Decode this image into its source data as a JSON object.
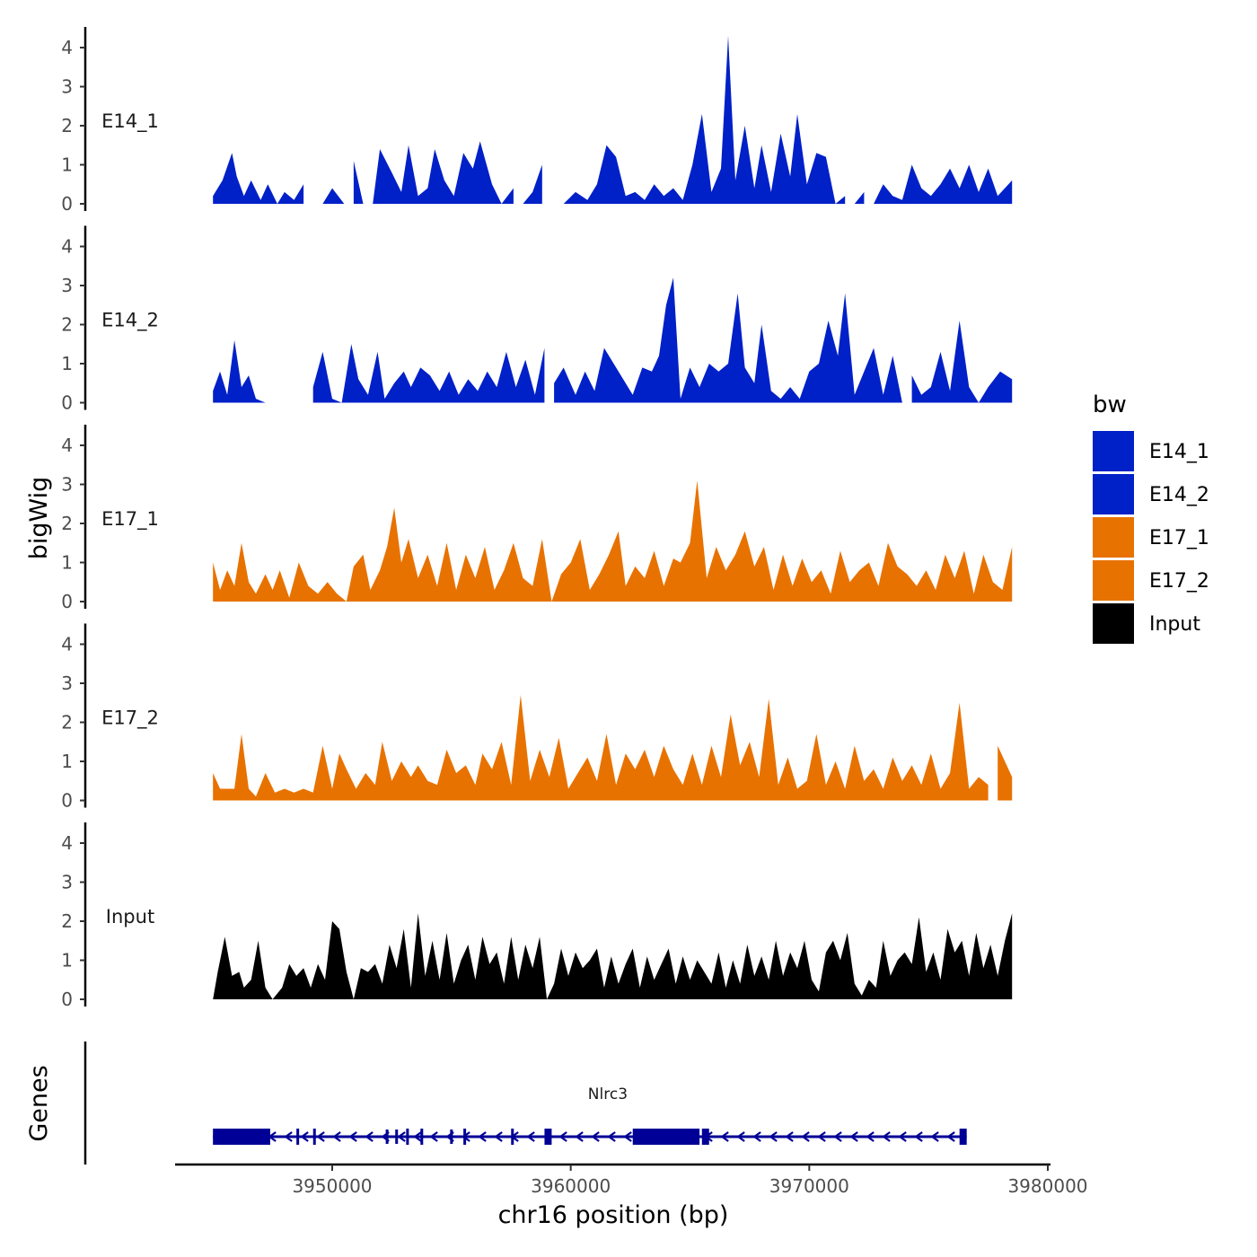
{
  "chart_data": {
    "type": "area",
    "ylabel": "bigWig",
    "xlabel": "chr16 position (bp)",
    "xlim": [
      3944000,
      3980000
    ],
    "ylim": [
      0,
      4.3
    ],
    "y_ticks": [
      0,
      1,
      2,
      3,
      4
    ],
    "x_ticks": [
      3950000,
      3960000,
      3970000,
      3980000
    ],
    "x_tick_labels": [
      "3950000",
      "3960000",
      "3970000",
      "3980000"
    ],
    "series": [
      {
        "name": "E14_1",
        "color": "#0020c8",
        "x": [
          3945000,
          3945400,
          3945800,
          3946000,
          3946300,
          3946600,
          3947000,
          3947300,
          3947700,
          3948000,
          3948400,
          3948800,
          3949100,
          3949600,
          3950000,
          3950500,
          3950900,
          3951300,
          3951700,
          3952000,
          3952500,
          3952900,
          3953200,
          3953600,
          3954000,
          3954300,
          3954700,
          3955100,
          3955500,
          3955900,
          3956200,
          3956700,
          3957100,
          3957600,
          3958000,
          3958400,
          3958800,
          3959200,
          3959700,
          3960200,
          3960700,
          3961100,
          3961500,
          3961900,
          3962300,
          3962700,
          3963100,
          3963500,
          3963900,
          3964300,
          3964700,
          3965100,
          3965500,
          3965900,
          3966300,
          3966600,
          3966900,
          3967300,
          3967700,
          3968000,
          3968400,
          3968800,
          3969200,
          3969500,
          3969900,
          3970300,
          3970700,
          3971100,
          3971500,
          3971900,
          3972300,
          3972700,
          3973100,
          3973500,
          3973900,
          3974300,
          3974700,
          3975100,
          3975500,
          3975900,
          3976300,
          3976700,
          3977100,
          3977500,
          3977900,
          3978500
        ],
        "y": [
          0.2,
          0.6,
          1.3,
          0.7,
          0.2,
          0.6,
          0.1,
          0.5,
          0.0,
          0.3,
          0.1,
          0.5,
          0.0,
          0.0,
          0.4,
          0.0,
          1.1,
          0.0,
          0.0,
          1.4,
          0.8,
          0.3,
          1.5,
          0.2,
          0.4,
          1.4,
          0.6,
          0.2,
          1.3,
          0.9,
          1.6,
          0.5,
          0.0,
          0.4,
          0.0,
          0.3,
          1.0,
          0.0,
          0.0,
          0.3,
          0.1,
          0.5,
          1.5,
          1.2,
          0.2,
          0.3,
          0.1,
          0.5,
          0.2,
          0.4,
          0.1,
          1.0,
          2.3,
          0.3,
          0.9,
          4.3,
          0.6,
          2.0,
          0.4,
          1.5,
          0.3,
          1.8,
          0.7,
          2.3,
          0.5,
          1.3,
          1.2,
          0.0,
          0.2,
          0.0,
          0.3,
          0.0,
          0.5,
          0.2,
          0.1,
          1.0,
          0.4,
          0.2,
          0.5,
          0.9,
          0.4,
          1.0,
          0.3,
          0.9,
          0.2,
          0.6
        ],
        "gaps": [
          [
            3948800,
            3949100
          ],
          [
            3950500,
            3950900
          ],
          [
            3951300,
            3951700
          ],
          [
            3957600,
            3958000
          ],
          [
            3958800,
            3959200
          ],
          [
            3959200,
            3959700
          ],
          [
            3971500,
            3971900
          ],
          [
            3972300,
            3972700
          ]
        ]
      },
      {
        "name": "E14_2",
        "color": "#0020c8",
        "x": [
          3945000,
          3945300,
          3945600,
          3945900,
          3946200,
          3946500,
          3946800,
          3947200,
          3947700,
          3948200,
          3948700,
          3949200,
          3949600,
          3950000,
          3950400,
          3950800,
          3951100,
          3951500,
          3951900,
          3952200,
          3952600,
          3953000,
          3953300,
          3953700,
          3954100,
          3954500,
          3954900,
          3955300,
          3955700,
          3956100,
          3956500,
          3956900,
          3957300,
          3957700,
          3958100,
          3958500,
          3958900,
          3959300,
          3959700,
          3960200,
          3960600,
          3961000,
          3961400,
          3961800,
          3962200,
          3962600,
          3963000,
          3963400,
          3963700,
          3964000,
          3964300,
          3964600,
          3965000,
          3965400,
          3965800,
          3966200,
          3966600,
          3967000,
          3967300,
          3967700,
          3968000,
          3968400,
          3968800,
          3969200,
          3969600,
          3970000,
          3970400,
          3970800,
          3971200,
          3971500,
          3971900,
          3972300,
          3972700,
          3973100,
          3973500,
          3973900,
          3974300,
          3974700,
          3975100,
          3975500,
          3975900,
          3976300,
          3976700,
          3977100,
          3977500,
          3978000,
          3978500
        ],
        "y": [
          0.3,
          0.8,
          0.2,
          1.6,
          0.4,
          0.7,
          0.1,
          0.0,
          0.0,
          0.0,
          0.0,
          0.4,
          1.3,
          0.1,
          0.0,
          1.5,
          0.6,
          0.2,
          1.3,
          0.1,
          0.5,
          0.8,
          0.4,
          0.9,
          0.7,
          0.3,
          0.8,
          0.2,
          0.6,
          0.3,
          0.8,
          0.4,
          1.3,
          0.4,
          1.1,
          0.2,
          1.4,
          0.5,
          0.9,
          0.2,
          0.8,
          0.3,
          1.4,
          1.0,
          0.6,
          0.2,
          0.9,
          0.8,
          1.2,
          2.5,
          3.2,
          0.1,
          0.9,
          0.4,
          1.0,
          0.8,
          1.0,
          2.8,
          0.9,
          0.5,
          2.0,
          0.3,
          0.1,
          0.4,
          0.1,
          0.8,
          1.0,
          2.1,
          1.2,
          2.8,
          0.2,
          0.8,
          1.4,
          0.2,
          1.2,
          0.0,
          0.7,
          0.2,
          0.4,
          1.3,
          0.3,
          2.1,
          0.4,
          0.0,
          0.4,
          0.8,
          0.6
        ],
        "gaps": [
          [
            3947200,
            3949200
          ],
          [
            3958900,
            3959300
          ],
          [
            3973900,
            3974300
          ]
        ]
      },
      {
        "name": "E17_1",
        "color": "#e87200",
        "x": [
          3945000,
          3945300,
          3945600,
          3945900,
          3946200,
          3946500,
          3946800,
          3947200,
          3947500,
          3947800,
          3948200,
          3948600,
          3949000,
          3949400,
          3949800,
          3950200,
          3950600,
          3950900,
          3951300,
          3951600,
          3952000,
          3952300,
          3952600,
          3952900,
          3953200,
          3953600,
          3954000,
          3954400,
          3954800,
          3955200,
          3955600,
          3956000,
          3956400,
          3956800,
          3957200,
          3957600,
          3958000,
          3958400,
          3958800,
          3959200,
          3959600,
          3960000,
          3960400,
          3960800,
          3961200,
          3961600,
          3962000,
          3962300,
          3962700,
          3963100,
          3963500,
          3963900,
          3964300,
          3964600,
          3965000,
          3965300,
          3965700,
          3966100,
          3966500,
          3966900,
          3967300,
          3967700,
          3968100,
          3968500,
          3968900,
          3969300,
          3969700,
          3970100,
          3970500,
          3970900,
          3971300,
          3971700,
          3972100,
          3972500,
          3972900,
          3973300,
          3973700,
          3974100,
          3974500,
          3974900,
          3975300,
          3975700,
          3976100,
          3976500,
          3976900,
          3977300,
          3977700,
          3978100,
          3978500
        ],
        "y": [
          1.0,
          0.3,
          0.8,
          0.4,
          1.5,
          0.5,
          0.2,
          0.7,
          0.3,
          0.8,
          0.1,
          1.0,
          0.4,
          0.2,
          0.5,
          0.2,
          0.0,
          0.9,
          1.2,
          0.3,
          0.8,
          1.4,
          2.4,
          1.0,
          1.6,
          0.6,
          1.2,
          0.4,
          1.5,
          0.3,
          1.2,
          0.6,
          1.4,
          0.3,
          0.8,
          1.5,
          0.6,
          0.4,
          1.6,
          0.0,
          0.7,
          1.0,
          1.6,
          0.3,
          0.7,
          1.2,
          1.8,
          0.4,
          0.9,
          0.6,
          1.3,
          0.4,
          1.1,
          1.0,
          1.5,
          3.1,
          0.6,
          1.4,
          0.8,
          1.2,
          1.8,
          0.9,
          1.4,
          0.3,
          1.2,
          0.4,
          1.1,
          0.5,
          0.8,
          0.2,
          1.3,
          0.5,
          0.8,
          1.0,
          0.4,
          1.5,
          0.9,
          0.7,
          0.4,
          0.8,
          0.3,
          1.2,
          0.6,
          1.3,
          0.2,
          1.2,
          0.5,
          0.3,
          1.4
        ],
        "gaps": []
      },
      {
        "name": "E17_2",
        "color": "#e87200",
        "x": [
          3945000,
          3945300,
          3945600,
          3945900,
          3946200,
          3946500,
          3946800,
          3947200,
          3947600,
          3948000,
          3948400,
          3948800,
          3949200,
          3949600,
          3950000,
          3950300,
          3950600,
          3951000,
          3951400,
          3951800,
          3952100,
          3952500,
          3952900,
          3953300,
          3953600,
          3954000,
          3954400,
          3954800,
          3955200,
          3955600,
          3956000,
          3956300,
          3956700,
          3957100,
          3957500,
          3957900,
          3958300,
          3958700,
          3959100,
          3959500,
          3959900,
          3960300,
          3960700,
          3961100,
          3961500,
          3961900,
          3962300,
          3962700,
          3963100,
          3963500,
          3963900,
          3964300,
          3964700,
          3965100,
          3965500,
          3965900,
          3966300,
          3966700,
          3967100,
          3967500,
          3967900,
          3968300,
          3968700,
          3969100,
          3969500,
          3969900,
          3970300,
          3970700,
          3971100,
          3971500,
          3971900,
          3972300,
          3972700,
          3973100,
          3973500,
          3973900,
          3974300,
          3974700,
          3975100,
          3975500,
          3975900,
          3976300,
          3976700,
          3977100,
          3977500,
          3977900,
          3978500
        ],
        "y": [
          0.7,
          0.3,
          0.3,
          0.3,
          1.7,
          0.3,
          0.1,
          0.7,
          0.2,
          0.3,
          0.2,
          0.3,
          0.2,
          1.4,
          0.3,
          1.2,
          0.8,
          0.3,
          0.7,
          0.4,
          1.5,
          0.5,
          1.0,
          0.6,
          0.9,
          0.5,
          0.4,
          1.3,
          0.7,
          0.9,
          0.4,
          1.2,
          0.8,
          1.5,
          0.4,
          2.7,
          0.5,
          1.3,
          0.6,
          1.6,
          0.3,
          0.7,
          1.1,
          0.5,
          1.7,
          0.4,
          1.2,
          0.8,
          1.3,
          0.6,
          1.4,
          0.8,
          0.4,
          1.2,
          0.4,
          1.4,
          0.6,
          2.2,
          0.9,
          1.5,
          0.6,
          2.6,
          0.4,
          1.1,
          0.3,
          0.5,
          1.7,
          0.4,
          1.0,
          0.3,
          1.4,
          0.5,
          0.8,
          0.3,
          1.1,
          0.5,
          0.9,
          0.4,
          1.2,
          0.3,
          0.7,
          2.5,
          0.3,
          0.6,
          0.4,
          1.4,
          0.6
        ],
        "gaps": [
          [
            3977500,
            3977900
          ]
        ]
      },
      {
        "name": "Input",
        "color": "#000000",
        "x": [
          3945000,
          3945200,
          3945500,
          3945800,
          3946100,
          3946300,
          3946600,
          3946900,
          3947200,
          3947500,
          3947900,
          3948200,
          3948500,
          3948800,
          3949100,
          3949400,
          3949700,
          3950000,
          3950300,
          3950600,
          3950900,
          3951200,
          3951500,
          3951800,
          3952100,
          3952400,
          3952700,
          3953000,
          3953300,
          3953600,
          3953900,
          3954200,
          3954500,
          3954800,
          3955100,
          3955400,
          3955700,
          3956000,
          3956300,
          3956600,
          3956900,
          3957200,
          3957500,
          3957800,
          3958100,
          3958400,
          3958700,
          3959000,
          3959300,
          3959600,
          3959900,
          3960200,
          3960500,
          3960800,
          3961100,
          3961400,
          3961700,
          3962000,
          3962300,
          3962600,
          3962900,
          3963200,
          3963500,
          3963800,
          3964100,
          3964400,
          3964700,
          3965000,
          3965300,
          3965600,
          3965900,
          3966200,
          3966500,
          3966800,
          3967100,
          3967400,
          3967700,
          3968000,
          3968300,
          3968600,
          3968900,
          3969200,
          3969500,
          3969800,
          3970100,
          3970400,
          3970700,
          3971000,
          3971300,
          3971600,
          3971900,
          3972200,
          3972500,
          3972800,
          3973100,
          3973400,
          3973700,
          3974000,
          3974300,
          3974600,
          3974900,
          3975200,
          3975500,
          3975800,
          3976100,
          3976400,
          3976700,
          3977000,
          3977300,
          3977600,
          3977900,
          3978200,
          3978500
        ],
        "y": [
          0.0,
          0.7,
          1.6,
          0.6,
          0.7,
          0.3,
          0.5,
          1.5,
          0.3,
          0.0,
          0.3,
          0.9,
          0.6,
          0.8,
          0.3,
          0.9,
          0.5,
          2.0,
          1.8,
          0.7,
          0.0,
          0.8,
          0.7,
          0.9,
          0.4,
          1.4,
          0.8,
          1.8,
          0.3,
          2.2,
          0.6,
          1.5,
          0.5,
          1.7,
          0.4,
          1.0,
          1.4,
          0.5,
          1.6,
          0.9,
          1.2,
          0.4,
          1.6,
          0.5,
          1.4,
          0.8,
          1.6,
          0.0,
          0.4,
          1.3,
          0.6,
          1.2,
          0.8,
          1.0,
          1.3,
          0.3,
          1.1,
          0.4,
          0.9,
          1.3,
          0.3,
          1.1,
          0.5,
          0.9,
          1.3,
          0.4,
          1.1,
          0.5,
          1.0,
          0.7,
          0.4,
          1.2,
          0.3,
          1.0,
          0.4,
          1.4,
          0.6,
          1.1,
          0.5,
          1.5,
          0.6,
          1.2,
          0.8,
          1.5,
          0.5,
          0.2,
          1.2,
          1.5,
          1.0,
          1.7,
          0.4,
          0.1,
          0.5,
          0.3,
          1.5,
          0.6,
          1.0,
          1.2,
          0.9,
          2.1,
          0.7,
          1.2,
          0.5,
          1.8,
          1.2,
          1.5,
          0.6,
          1.7,
          0.8,
          1.4,
          0.6,
          1.5,
          2.2
        ],
        "gaps": []
      }
    ],
    "legend": {
      "title": "bw",
      "position": "right",
      "entries": [
        {
          "label": "E14_1",
          "color": "#0020c8"
        },
        {
          "label": "E14_2",
          "color": "#0020c8"
        },
        {
          "label": "E17_1",
          "color": "#e87200"
        },
        {
          "label": "E17_2",
          "color": "#e87200"
        },
        {
          "label": "Input",
          "color": "#000000"
        }
      ]
    },
    "gene_track": {
      "label": "Genes",
      "color": "#000096",
      "genes": [
        {
          "name": "Nlrc3",
          "strand": "-",
          "start": 3945000,
          "end": 3976600,
          "exons": [
            [
              3945000,
              3947400
            ],
            [
              3948500,
              3948600
            ],
            [
              3949200,
              3949300
            ],
            [
              3953100,
              3953200
            ],
            [
              3953700,
              3953800
            ],
            [
              3955500,
              3955600
            ],
            [
              3957500,
              3957600
            ],
            [
              3958900,
              3959200
            ],
            [
              3962600,
              3965400
            ],
            [
              3965500,
              3965800
            ],
            [
              3976300,
              3976600
            ]
          ],
          "marks": [
            3952300,
            3952700,
            3955000,
            3959000
          ]
        }
      ]
    }
  }
}
